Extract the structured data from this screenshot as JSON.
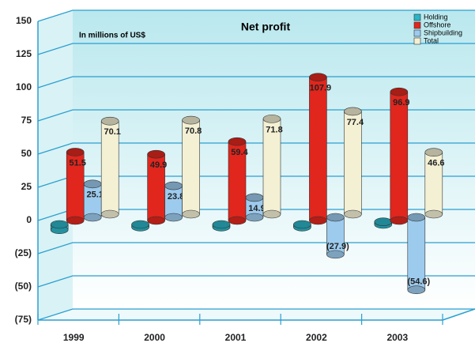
{
  "chart_data": {
    "type": "bar3d",
    "title": "Net profit",
    "subtitle": "In millions of US$",
    "categories": [
      "1999",
      "2000",
      "2001",
      "2002",
      "2003"
    ],
    "series": [
      {
        "name": "Holding",
        "color": "#2bb5c8",
        "values": [
          -4,
          -2,
          -2,
          -2,
          2
        ]
      },
      {
        "name": "Offshore",
        "color": "#e0261d",
        "values": [
          51.5,
          49.9,
          59.4,
          107.9,
          96.9
        ]
      },
      {
        "name": "Shipbuilding",
        "color": "#9ccbee",
        "values": [
          25.1,
          23.8,
          14.9,
          -27.9,
          -54.6
        ],
        "value_labels": [
          "25.1",
          "23.8",
          "14.9",
          "(27.9)",
          "(54.6)"
        ]
      },
      {
        "name": "Total",
        "color": "#f3f0d4",
        "values": [
          70.1,
          70.8,
          71.8,
          77.4,
          46.6
        ]
      }
    ],
    "ylim": [
      -75,
      150
    ],
    "yticks": [
      {
        "value": -75,
        "label": "(75)"
      },
      {
        "value": -50,
        "label": "(50)"
      },
      {
        "value": -25,
        "label": "(25)"
      },
      0,
      25,
      50,
      75,
      100,
      125,
      150
    ],
    "grid": true,
    "legend": "top-right"
  }
}
